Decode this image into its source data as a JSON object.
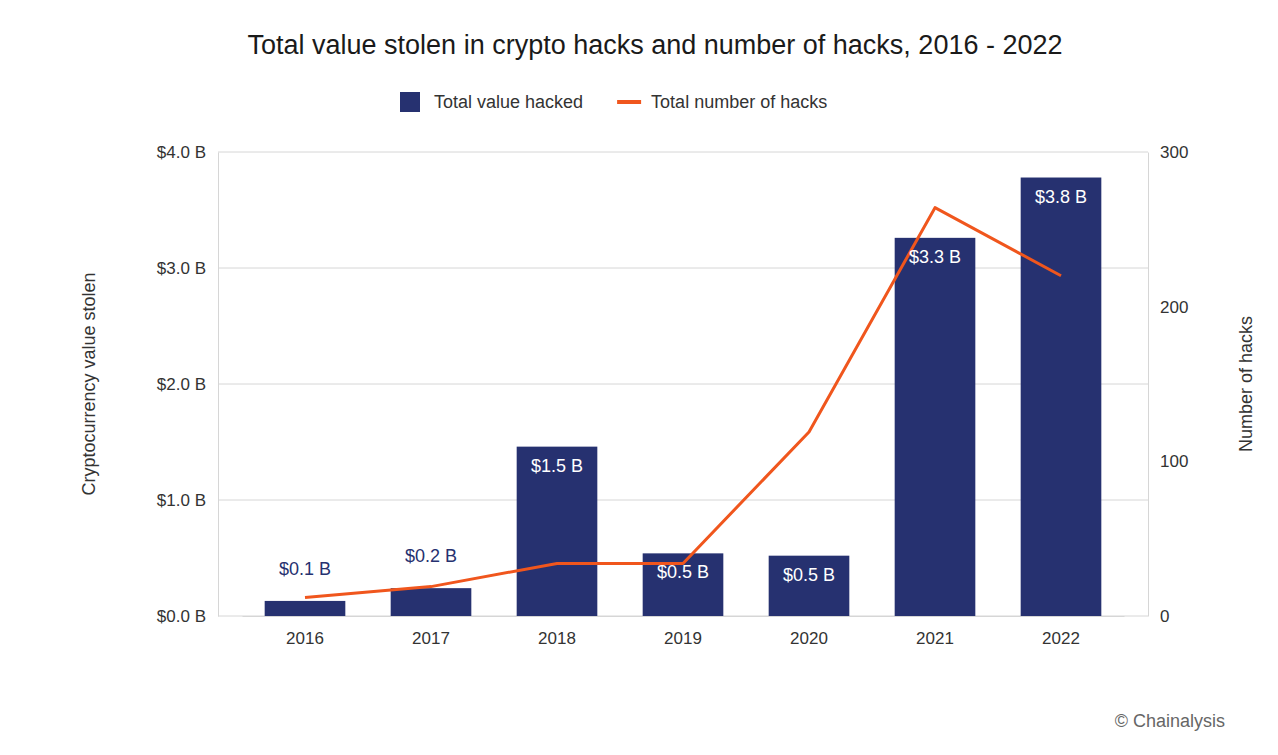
{
  "chart_data": {
    "type": "bar",
    "title": "Total value stolen in crypto hacks and number of hacks, 2016 - 2022",
    "categories": [
      "2016",
      "2017",
      "2018",
      "2019",
      "2020",
      "2021",
      "2022"
    ],
    "series": [
      {
        "name": "Total value hacked",
        "type": "bar",
        "color": "#263170",
        "values": [
          0.13,
          0.24,
          1.46,
          0.54,
          0.52,
          3.26,
          3.78
        ],
        "value_labels": [
          "$0.1 B",
          "$0.2 B",
          "$1.5 B",
          "$0.5 B",
          "$0.5 B",
          "$3.3 B",
          "$3.8 B"
        ]
      },
      {
        "name": "Total number of hacks",
        "type": "line",
        "color": "#f0561d",
        "axis": "y2",
        "values": [
          12,
          19,
          34,
          34,
          119,
          264,
          220
        ]
      }
    ],
    "ylabel": "Cryptocurrency value stolen",
    "y2label": "Number of hacks",
    "ylim": [
      0,
      4
    ],
    "yticks": [
      {
        "value": 0,
        "label": "$0.0 B"
      },
      {
        "value": 1,
        "label": "$1.0 B"
      },
      {
        "value": 2,
        "label": "$2.0 B"
      },
      {
        "value": 3,
        "label": "$3.0 B"
      },
      {
        "value": 4,
        "label": "$4.0 B"
      }
    ],
    "y2lim": [
      0,
      300
    ],
    "y2ticks": [
      0,
      100,
      200,
      300
    ],
    "grid": true,
    "legend": "top",
    "data_labels": true,
    "source": "© Chainalysis"
  }
}
